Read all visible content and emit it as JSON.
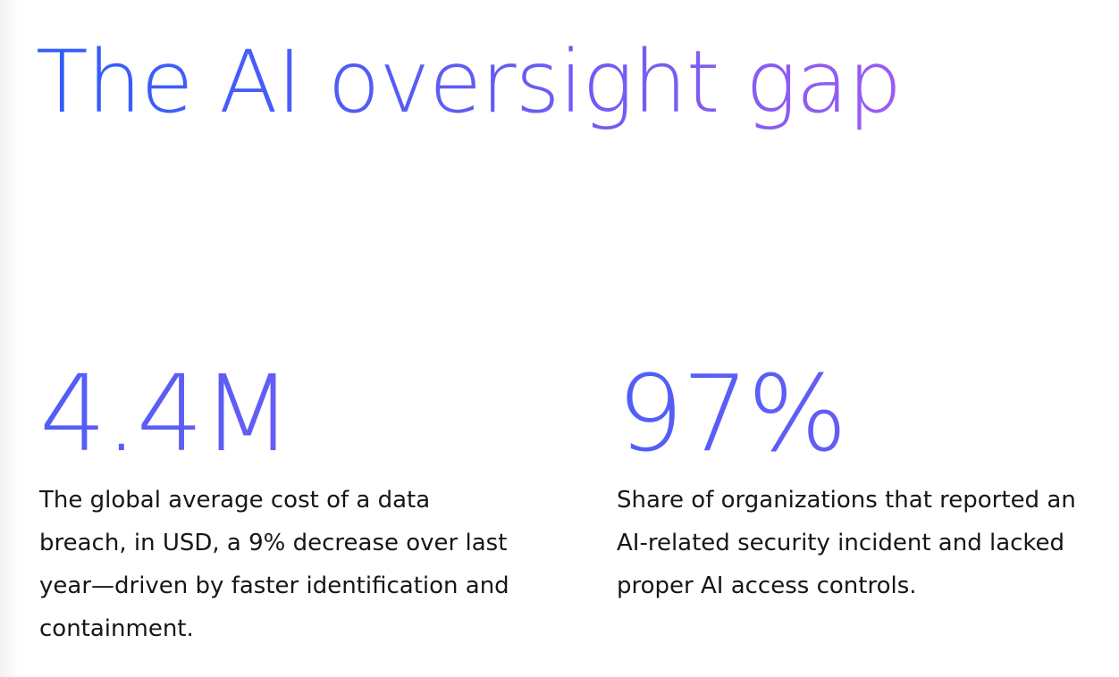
{
  "page": {
    "title": "The AI oversight gap"
  },
  "stats": [
    {
      "value": "4.4M",
      "description": "The global average cost of a data breach, in USD, a 9% decrease over last year—driven by faster identification and containment."
    },
    {
      "value": "97%",
      "description": "Share of organizations that reported an AI-related security incident and lacked proper AI access controls."
    }
  ],
  "colors": {
    "gradient_start": "#2f5dfb",
    "gradient_end": "#9b5cf2",
    "text": "#161616",
    "background": "#ffffff"
  }
}
